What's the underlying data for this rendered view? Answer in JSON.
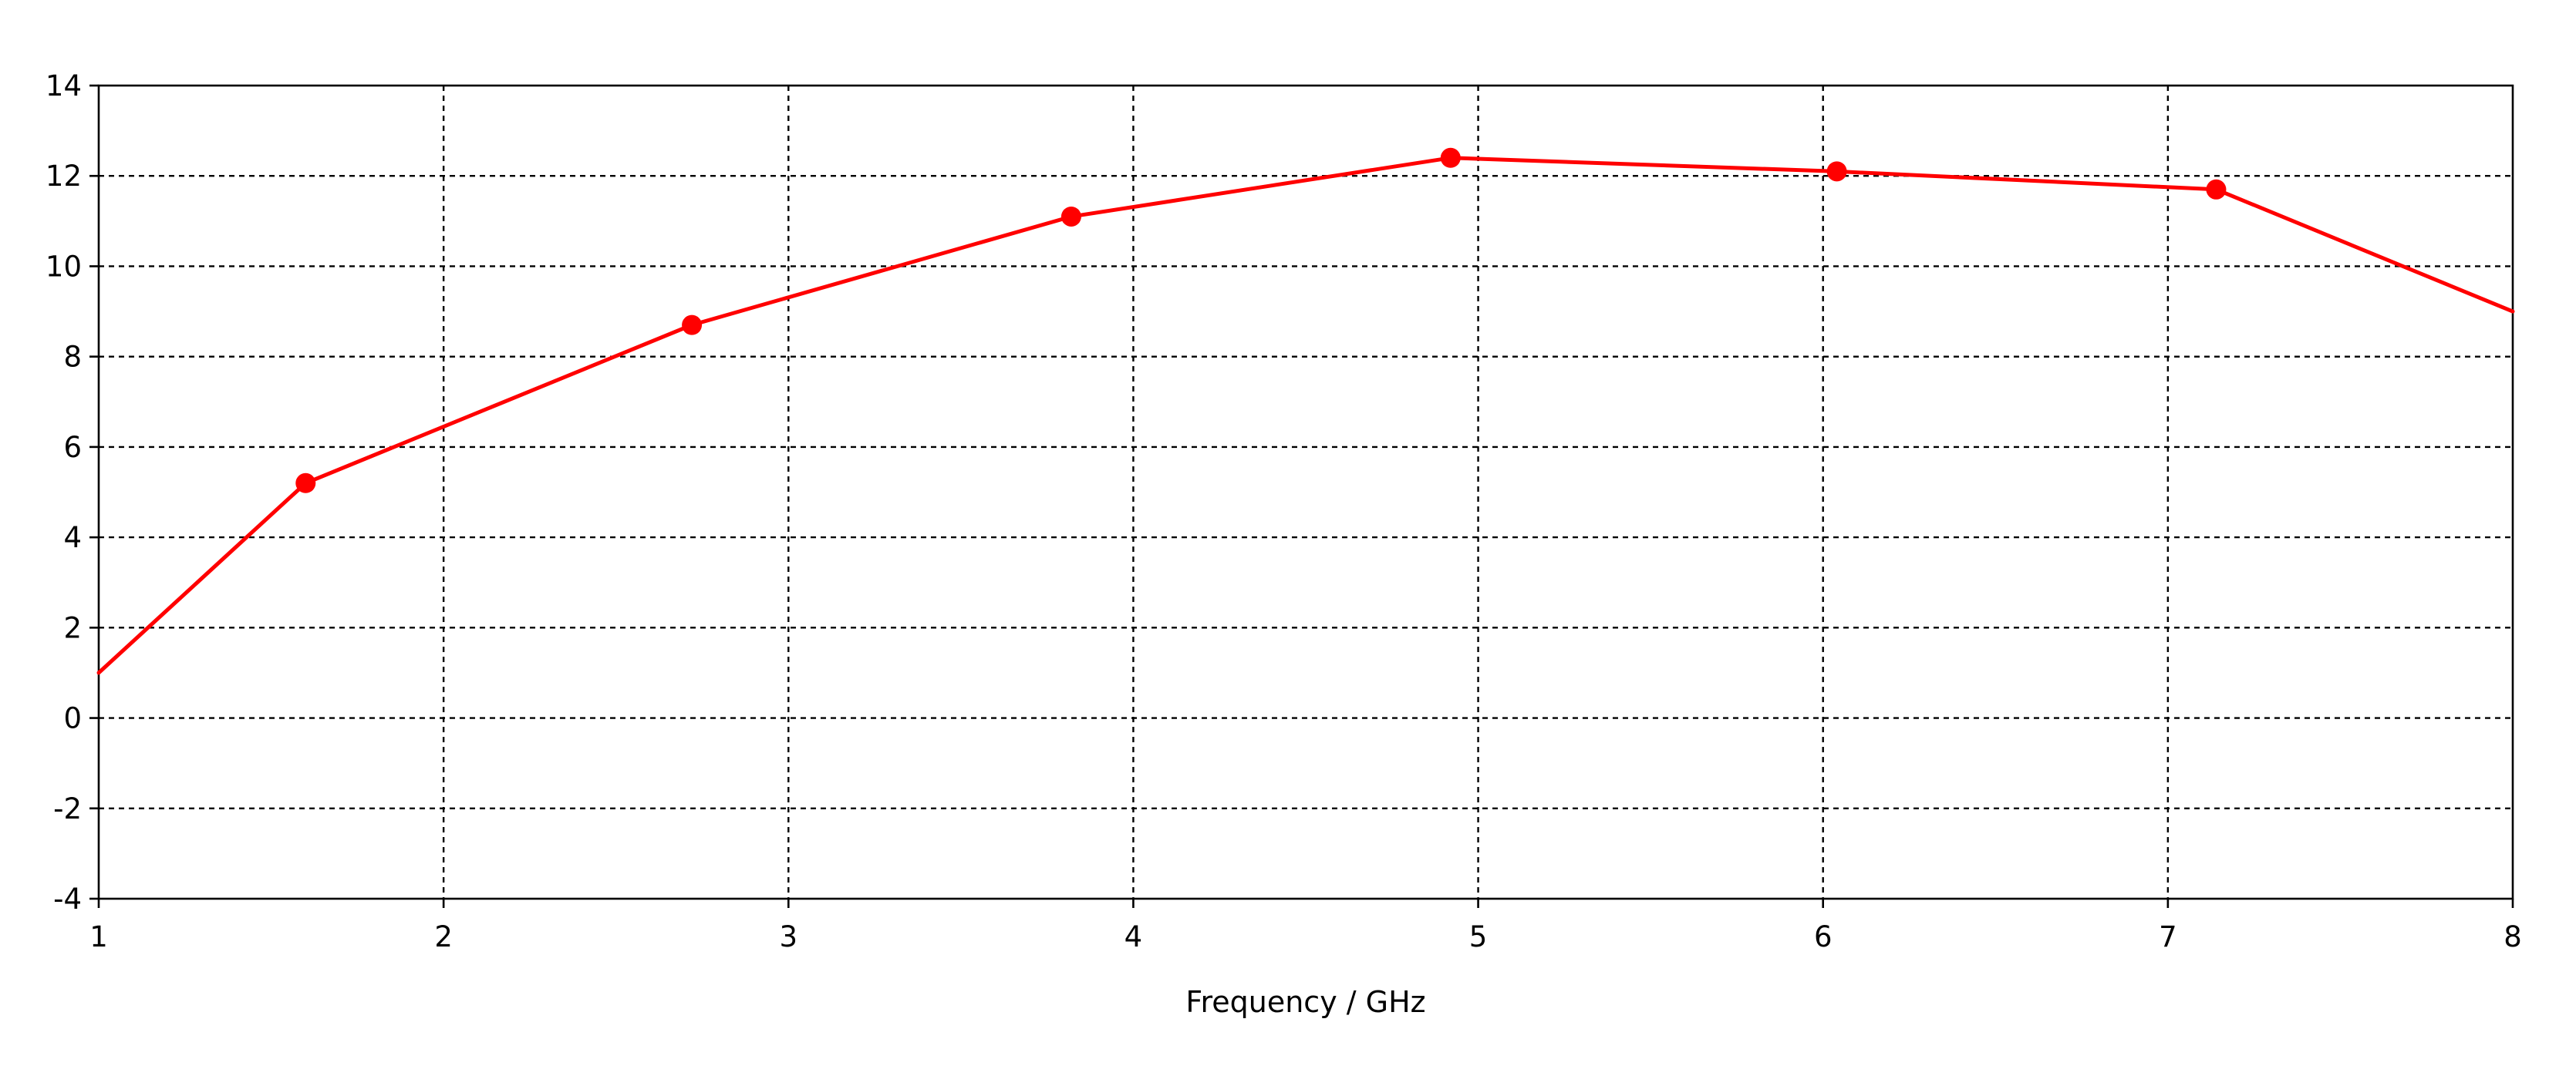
{
  "chart_data": {
    "type": "line",
    "title": "",
    "xlabel": "Frequency / GHz",
    "ylabel": "",
    "xlim": [
      1,
      8
    ],
    "ylim": [
      -4,
      14
    ],
    "x_ticks": [
      "1",
      "2",
      "3",
      "4",
      "5",
      "6",
      "7",
      "8"
    ],
    "y_ticks": [
      "-4",
      "-2",
      "0",
      "2",
      "4",
      "6",
      "8",
      "10",
      "12",
      "14"
    ],
    "grid": true,
    "legend": "none",
    "series": [
      {
        "color": "#ff0000",
        "x": [
          1.0,
          1.6,
          2.72,
          3.82,
          4.92,
          6.04,
          7.14,
          8.0
        ],
        "y": [
          1.0,
          5.2,
          8.7,
          11.1,
          12.4,
          12.1,
          11.7,
          9.0
        ],
        "marker_x": [
          1.6,
          2.72,
          3.82,
          4.92,
          6.04,
          7.14
        ],
        "marker_y": [
          5.2,
          8.7,
          11.1,
          12.4,
          12.1,
          11.7
        ]
      }
    ]
  }
}
